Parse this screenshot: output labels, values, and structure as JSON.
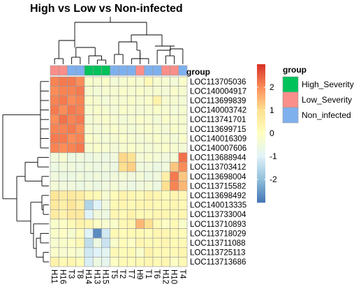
{
  "chart_data": {
    "type": "heatmap",
    "title": "High vs Low vs Non-infected",
    "columns": [
      "H11",
      "H16",
      "T3",
      "T8",
      "H14",
      "H13",
      "H15",
      "T5",
      "T2",
      "T7",
      "H9",
      "T1",
      "T6",
      "H12",
      "H10",
      "T4"
    ],
    "column_group_label": "group",
    "column_groups": [
      "Low_Severity",
      "Low_Severity",
      "Non_infected",
      "Non_infected",
      "High_Severity",
      "High_Severity",
      "High_Severity",
      "Non_infected",
      "Non_infected",
      "Non_infected",
      "Low_Severity",
      "Non_infected",
      "Non_infected",
      "Low_Severity",
      "Low_Severity",
      "Non_infected"
    ],
    "rows": [
      "LOC113705036",
      "LOC140004917",
      "LOC113699839",
      "LOC140003742",
      "LOC113741701",
      "LOC113699715",
      "LOC140016309",
      "LOC140007606",
      "LOC113688944",
      "LOC113703412",
      "LOC113698004",
      "LOC113715582",
      "LOC113698492",
      "LOC140013335",
      "LOC113733004",
      "LOC113710893",
      "LOC113718029",
      "LOC113711088",
      "LOC113725113",
      "LOC113713686"
    ],
    "values": [
      [
        2.1,
        2.2,
        2.2,
        2.0,
        -0.2,
        -0.3,
        -0.2,
        -0.4,
        -0.3,
        -0.2,
        -0.3,
        0.2,
        -0.3,
        -0.3,
        -0.4,
        -0.2
      ],
      [
        2.0,
        2.1,
        2.1,
        2.2,
        -0.3,
        -0.4,
        -0.3,
        -0.3,
        -0.2,
        -0.3,
        -0.2,
        -0.3,
        -0.3,
        -0.4,
        -0.2,
        -0.3
      ],
      [
        2.1,
        2.2,
        2.0,
        2.1,
        -0.2,
        -0.3,
        -0.4,
        -0.3,
        -0.3,
        -0.2,
        -0.3,
        -0.2,
        0.4,
        -0.3,
        -0.3,
        -0.4
      ],
      [
        2.2,
        2.0,
        2.2,
        2.1,
        -0.3,
        -0.2,
        -0.3,
        -0.4,
        -0.2,
        -0.3,
        -0.4,
        -0.3,
        -0.2,
        -0.3,
        -0.4,
        -0.3
      ],
      [
        2.0,
        2.3,
        2.1,
        2.2,
        -0.4,
        -0.3,
        -0.2,
        -0.3,
        -0.4,
        -0.3,
        -0.2,
        -0.3,
        -0.4,
        -0.2,
        -0.3,
        -0.3
      ],
      [
        2.1,
        2.1,
        2.2,
        2.0,
        -0.3,
        -0.4,
        -0.3,
        -0.2,
        -0.3,
        -0.4,
        -0.3,
        -0.2,
        -0.3,
        -0.4,
        -0.2,
        -0.3
      ],
      [
        2.2,
        2.2,
        2.0,
        2.1,
        -0.2,
        -0.3,
        -0.4,
        -0.3,
        -0.2,
        -0.3,
        -0.4,
        -0.3,
        -0.2,
        -0.3,
        -0.4,
        -0.2
      ],
      [
        2.1,
        2.0,
        2.1,
        2.2,
        -0.3,
        -0.2,
        -0.3,
        -0.4,
        -0.3,
        -0.2,
        -0.3,
        -0.4,
        -0.3,
        -0.2,
        -0.3,
        -0.4
      ],
      [
        -0.5,
        -0.3,
        -0.6,
        -0.5,
        -0.6,
        -0.5,
        -0.6,
        -0.5,
        1.1,
        0.9,
        -0.4,
        -0.3,
        -0.4,
        -0.5,
        -0.4,
        2.3
      ],
      [
        -0.6,
        -0.5,
        -0.5,
        -0.6,
        -0.5,
        -0.6,
        -0.5,
        -0.6,
        1.0,
        1.2,
        -0.5,
        -0.5,
        -0.6,
        -0.5,
        1.3,
        2.0
      ],
      [
        -0.5,
        -0.6,
        -0.6,
        -0.5,
        -0.6,
        -0.5,
        -0.6,
        -0.5,
        -0.4,
        -0.5,
        -0.4,
        -0.6,
        -0.5,
        0.5,
        2.2,
        1.3
      ],
      [
        -0.4,
        -0.5,
        -0.5,
        -0.6,
        -0.5,
        -0.6,
        -0.5,
        -0.4,
        -0.5,
        -0.6,
        -0.5,
        -0.4,
        -0.6,
        1.0,
        2.1,
        1.5
      ],
      [
        0.8,
        0.6,
        0.7,
        0.6,
        0.3,
        0.2,
        -0.3,
        0.1,
        0.4,
        0.3,
        0.2,
        0.4,
        0.3,
        0.1,
        0.3,
        0.2
      ],
      [
        0.7,
        0.5,
        0.8,
        0.5,
        -1.6,
        -1.0,
        -0.5,
        0.2,
        0.3,
        0.2,
        0.3,
        0.3,
        0.2,
        0.2,
        0.3,
        0.2
      ],
      [
        0.6,
        0.4,
        0.7,
        0.7,
        -1.0,
        -0.5,
        -0.6,
        0.3,
        0.2,
        0.4,
        0.2,
        0.2,
        0.3,
        0.3,
        0.2,
        0.3
      ],
      [
        -0.2,
        -0.1,
        0.2,
        0.4,
        0.3,
        -0.1,
        -0.3,
        -0.2,
        0.2,
        0.3,
        1.5,
        1.0,
        0.2,
        -0.1,
        0.2,
        -0.2
      ],
      [
        -0.2,
        -0.1,
        -0.3,
        0.1,
        -1.0,
        -2.7,
        -1.2,
        0.2,
        0.1,
        0.2,
        0.2,
        0.1,
        0.3,
        0.3,
        0.2,
        0.1
      ],
      [
        -0.3,
        -0.2,
        -0.1,
        0.2,
        -1.4,
        -0.6,
        -1.3,
        -0.2,
        0.1,
        -0.1,
        0.3,
        0.2,
        0.2,
        0.3,
        0.2,
        0.2
      ],
      [
        -0.2,
        -0.3,
        -0.2,
        -0.3,
        -1.2,
        -1.0,
        -0.9,
        0.2,
        0.1,
        0.2,
        -0.2,
        0.4,
        0.2,
        0.2,
        0.2,
        0.3
      ],
      [
        0.4,
        0.2,
        0.3,
        0.1,
        -1.1,
        -0.6,
        -0.8,
        -0.1,
        0.2,
        0.1,
        0.2,
        0.3,
        0.2,
        0.3,
        -0.1,
        0.2
      ]
    ],
    "color_scale": {
      "min": -3,
      "max": 3,
      "stops": [
        {
          "value": -3,
          "color": "#4575b4"
        },
        {
          "value": -2,
          "color": "#91bfdb"
        },
        {
          "value": -1,
          "color": "#e0f3f8"
        },
        {
          "value": 0,
          "color": "#ffffbf"
        },
        {
          "value": 1,
          "color": "#fee090"
        },
        {
          "value": 2,
          "color": "#fc8d59"
        },
        {
          "value": 3,
          "color": "#d73027"
        }
      ],
      "ticks": [
        2,
        1,
        0,
        -1,
        -2
      ],
      "tick_labels": [
        "2",
        "1",
        "0",
        "-1",
        "-2"
      ]
    },
    "legend": {
      "title": "group",
      "placement": "right",
      "items": [
        {
          "label": "High_Severity",
          "color": "#00c25b"
        },
        {
          "label": "Low_Severity",
          "color": "#fa8e8a"
        },
        {
          "label": "Non_infected",
          "color": "#7fb0ee"
        }
      ]
    },
    "grid": true
  }
}
